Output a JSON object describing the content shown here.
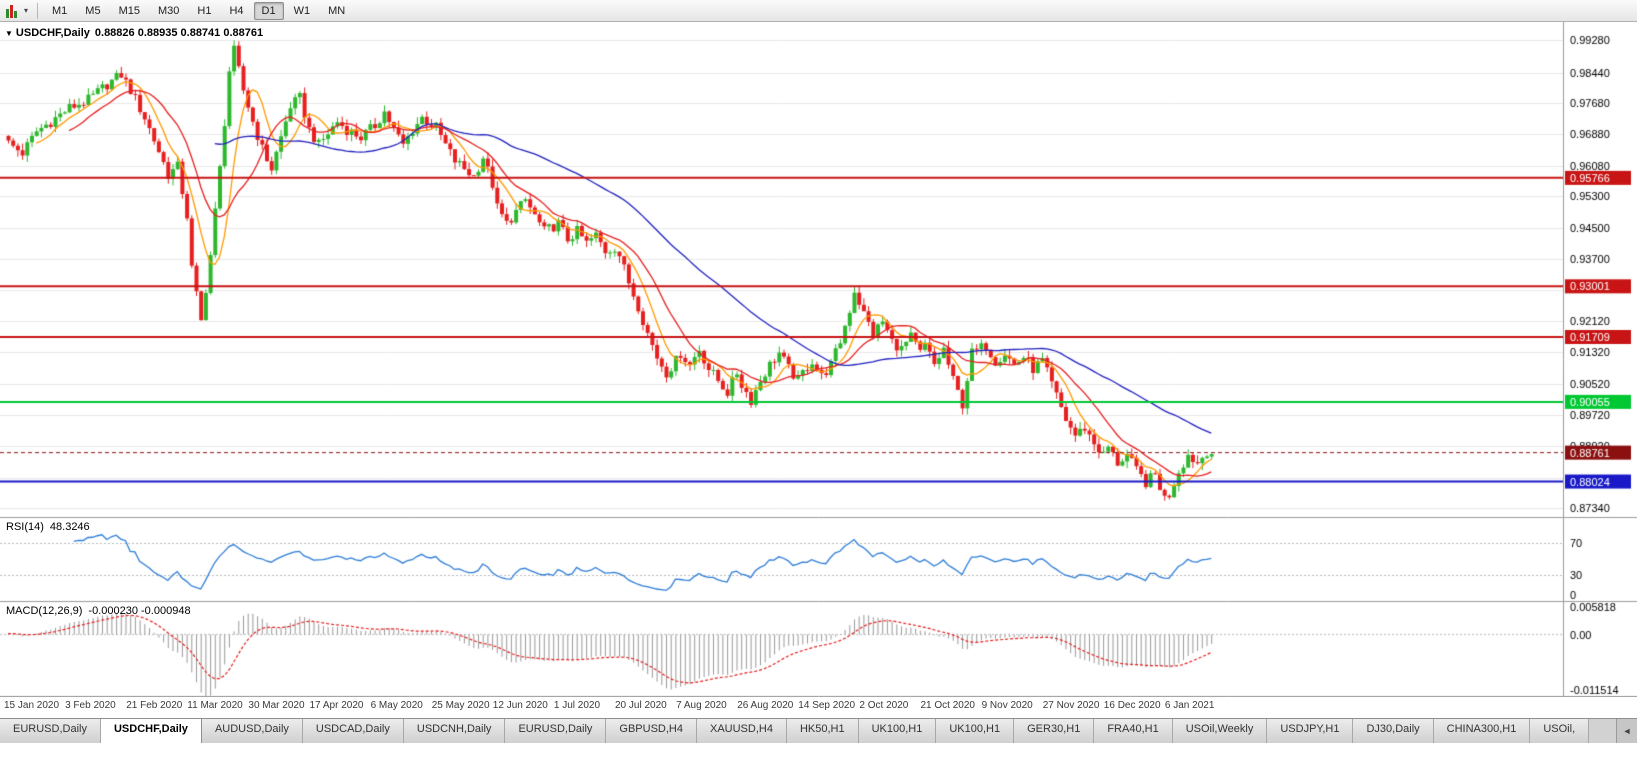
{
  "toolbar": {
    "timeframes": [
      "M1",
      "M5",
      "M15",
      "M30",
      "H1",
      "H4",
      "D1",
      "W1",
      "MN"
    ],
    "active_timeframe": "D1"
  },
  "main_chart": {
    "symbol": "USDCHF,Daily",
    "ohlc": "0.88826  0.88935  0.88741  0.88761",
    "price_axis": {
      "min": 0.8712,
      "max": 0.9974,
      "ticks": [
        "0.99280",
        "0.98440",
        "0.97680",
        "0.96880",
        "0.96080",
        "0.95300",
        "0.94500",
        "0.93700",
        "0.92120",
        "0.91320",
        "0.90520",
        "0.89720",
        "0.88920",
        "0.87340"
      ],
      "grid_prices": [
        0.9928,
        0.9844,
        0.9768,
        0.9688,
        0.9608,
        0.953,
        0.945,
        0.937,
        0.9292,
        0.9212,
        0.9132,
        0.9052,
        0.8972,
        0.8892,
        0.8812,
        0.8734
      ]
    },
    "hlines": [
      {
        "price": 0.95766,
        "label": "0.95766",
        "color": "#c81414",
        "text": "#ffffff",
        "width": 2
      },
      {
        "price": 0.93001,
        "label": "0.93001",
        "color": "#c81414",
        "text": "#ffffff",
        "width": 2
      },
      {
        "price": 0.91709,
        "label": "0.91709",
        "color": "#c81414",
        "text": "#ffffff",
        "width": 2
      },
      {
        "price": 0.90055,
        "label": "0.90055",
        "color": "#00c832",
        "text": "#ffffff",
        "width": 2
      },
      {
        "price": 0.88024,
        "label": "0.88024",
        "color": "#1919c8",
        "text": "#ffffff",
        "width": 2
      }
    ],
    "last_price": {
      "value": 0.88761,
      "label": "0.88761",
      "badge": "#8c1010",
      "text": "#ffffff"
    },
    "candle_up_color": "#2eb82e",
    "candle_down_color": "#e62020",
    "grid_color": "#e9e9e9",
    "moving_averages": [
      {
        "name": "ma-fast",
        "period": 7,
        "color": "#ff9900"
      },
      {
        "name": "ma-mid",
        "period": 14,
        "color": "#e62020"
      },
      {
        "name": "ma-slow",
        "period": 45,
        "color": "#2323bf"
      }
    ]
  },
  "chart_data": {
    "type": "candlestick",
    "symbol": "USDCHF",
    "timeframe": "Daily",
    "days_total": 257,
    "days_per_label": 13,
    "x_labels": [
      "15 Jan 2020",
      "3 Feb 2020",
      "21 Feb 2020",
      "11 Mar 2020",
      "30 Mar 2020",
      "17 Apr 2020",
      "6 May 2020",
      "25 May 2020",
      "12 Jun 2020",
      "1 Jul 2020",
      "20 Jul 2020",
      "7 Aug 2020",
      "26 Aug 2020",
      "14 Sep 2020",
      "2 Oct 2020",
      "21 Oct 2020",
      "9 Nov 2020",
      "27 Nov 2020",
      "16 Dec 2020",
      "6 Jan 2021"
    ],
    "price_anchors": [
      [
        0,
        0.9665
      ],
      [
        3,
        0.964
      ],
      [
        6,
        0.9695
      ],
      [
        9,
        0.972
      ],
      [
        13,
        0.9755
      ],
      [
        17,
        0.9775
      ],
      [
        21,
        0.9815
      ],
      [
        24,
        0.984
      ],
      [
        26,
        0.98
      ],
      [
        29,
        0.973
      ],
      [
        32,
        0.9645
      ],
      [
        34,
        0.9585
      ],
      [
        36,
        0.9605
      ],
      [
        38,
        0.948
      ],
      [
        39,
        0.9345
      ],
      [
        41,
        0.921
      ],
      [
        43,
        0.938
      ],
      [
        45,
        0.96
      ],
      [
        46,
        0.972
      ],
      [
        47,
        0.985
      ],
      [
        48,
        0.99
      ],
      [
        50,
        0.98
      ],
      [
        52,
        0.972
      ],
      [
        54,
        0.965
      ],
      [
        56,
        0.96
      ],
      [
        58,
        0.968
      ],
      [
        60,
        0.976
      ],
      [
        62,
        0.978
      ],
      [
        64,
        0.97
      ],
      [
        66,
        0.966
      ],
      [
        68,
        0.969
      ],
      [
        70,
        0.972
      ],
      [
        72,
        0.97
      ],
      [
        75,
        0.968
      ],
      [
        78,
        0.971
      ],
      [
        80,
        0.9745
      ],
      [
        82,
        0.97
      ],
      [
        84,
        0.966
      ],
      [
        86,
        0.97
      ],
      [
        88,
        0.973
      ],
      [
        91,
        0.9705
      ],
      [
        93,
        0.966
      ],
      [
        95,
        0.962
      ],
      [
        97,
        0.96
      ],
      [
        99,
        0.958
      ],
      [
        101,
        0.963
      ],
      [
        103,
        0.956
      ],
      [
        104,
        0.95
      ],
      [
        106,
        0.946
      ],
      [
        108,
        0.949
      ],
      [
        110,
        0.952
      ],
      [
        112,
        0.948
      ],
      [
        114,
        0.944
      ],
      [
        117,
        0.946
      ],
      [
        119,
        0.942
      ],
      [
        121,
        0.944
      ],
      [
        123,
        0.941
      ],
      [
        125,
        0.943
      ],
      [
        127,
        0.939
      ],
      [
        129,
        0.94
      ],
      [
        130,
        0.938
      ],
      [
        132,
        0.931
      ],
      [
        134,
        0.925
      ],
      [
        136,
        0.918
      ],
      [
        138,
        0.912
      ],
      [
        140,
        0.908
      ],
      [
        142,
        0.911
      ],
      [
        143,
        0.913
      ],
      [
        145,
        0.91
      ],
      [
        147,
        0.914
      ],
      [
        149,
        0.909
      ],
      [
        151,
        0.906
      ],
      [
        153,
        0.903
      ],
      [
        155,
        0.908
      ],
      [
        156,
        0.905
      ],
      [
        158,
        0.901
      ],
      [
        160,
        0.906
      ],
      [
        162,
        0.91
      ],
      [
        164,
        0.913
      ],
      [
        166,
        0.909
      ],
      [
        168,
        0.906
      ],
      [
        169,
        0.908
      ],
      [
        171,
        0.911
      ],
      [
        173,
        0.907
      ],
      [
        175,
        0.91
      ],
      [
        177,
        0.916
      ],
      [
        179,
        0.924
      ],
      [
        180,
        0.929
      ],
      [
        182,
        0.923
      ],
      [
        184,
        0.918
      ],
      [
        186,
        0.921
      ],
      [
        188,
        0.916
      ],
      [
        190,
        0.914
      ],
      [
        192,
        0.917
      ],
      [
        194,
        0.913
      ],
      [
        195,
        0.915
      ],
      [
        197,
        0.91
      ],
      [
        199,
        0.914
      ],
      [
        201,
        0.906
      ],
      [
        203,
        0.9
      ],
      [
        205,
        0.913
      ],
      [
        208,
        0.915
      ],
      [
        210,
        0.911
      ],
      [
        212,
        0.913
      ],
      [
        214,
        0.91
      ],
      [
        216,
        0.912
      ],
      [
        218,
        0.909
      ],
      [
        220,
        0.911
      ],
      [
        221,
        0.908
      ],
      [
        223,
        0.902
      ],
      [
        225,
        0.896
      ],
      [
        227,
        0.892
      ],
      [
        229,
        0.894
      ],
      [
        231,
        0.89
      ],
      [
        233,
        0.887
      ],
      [
        234,
        0.889
      ],
      [
        236,
        0.885
      ],
      [
        238,
        0.887
      ],
      [
        240,
        0.883
      ],
      [
        242,
        0.88
      ],
      [
        244,
        0.882
      ],
      [
        245,
        0.879
      ],
      [
        246,
        0.876
      ],
      [
        247,
        0.877
      ],
      [
        249,
        0.883
      ],
      [
        251,
        0.887
      ],
      [
        253,
        0.885
      ],
      [
        255,
        0.888
      ],
      [
        256,
        0.8876
      ]
    ],
    "ohlc_last": {
      "open": 0.88826,
      "high": 0.88935,
      "low": 0.88741,
      "close": 0.88761
    }
  },
  "rsi_panel": {
    "label": "RSI(14)",
    "value": "48.3246",
    "period": 14,
    "levels": [
      "70",
      "30",
      "0"
    ],
    "level_values": [
      70,
      30,
      0
    ],
    "color": "#2f7ed8"
  },
  "macd_panel": {
    "label": "MACD(12,26,9)",
    "values": "-0.000230 -0.000948",
    "fast": 12,
    "slow": 26,
    "signal": 9,
    "axis_ticks": [
      "0.005818",
      "0.00",
      "-0.011514"
    ],
    "range": [
      -0.011514,
      0.005818
    ],
    "histogram_color": "#9a9a9a",
    "signal_color": "#e62020"
  },
  "tabs": {
    "items": [
      "EURUSD,Daily",
      "USDCHF,Daily",
      "AUDUSD,Daily",
      "USDCAD,Daily",
      "USDCNH,Daily",
      "EURUSD,Daily",
      "GBPUSD,H4",
      "XAUUSD,H4",
      "HK50,H1",
      "UK100,H1",
      "UK100,H1",
      "GER30,H1",
      "FRA40,H1",
      "USOil,Weekly",
      "USDJPY,H1",
      "DJ30,Daily",
      "CHINA300,H1",
      "USOil,"
    ],
    "active_index": 1
  }
}
